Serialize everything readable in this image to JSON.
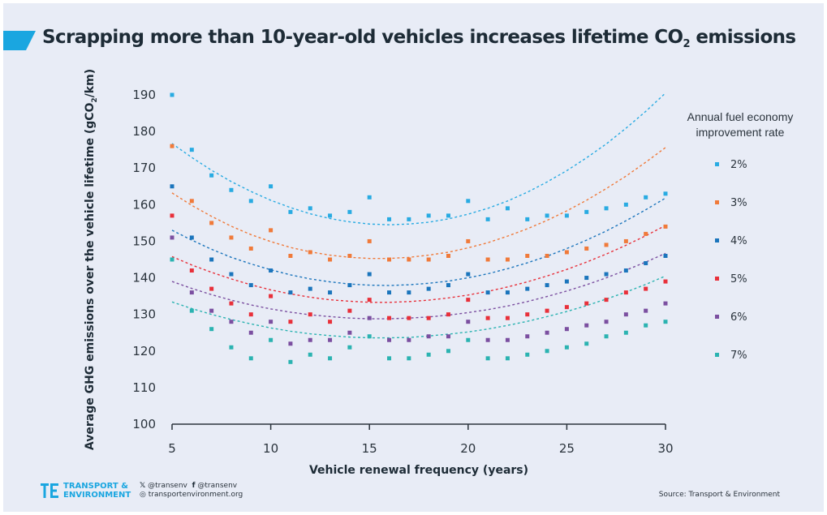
{
  "page": {
    "title_main": "Scrapping more than 10-year-old vehicles increases lifetime CO",
    "title_sub": "2",
    "title_tail": " emissions",
    "footer": {
      "brand_line1": "TRANSPORT &",
      "brand_line2": "ENVIRONMENT",
      "twitter": "@transenv",
      "facebook": "@transenv",
      "website": "transportenvironment.org",
      "twitter_icon": "twitter-icon",
      "facebook_icon": "facebook-icon",
      "web_icon": "globe-icon",
      "source": "Source: Transport & Environment"
    },
    "colors": {
      "accent": "#1aa6e0",
      "background": "#e8ecf6",
      "text": "#1d2b36"
    }
  },
  "chart_data": {
    "type": "scatter",
    "title": "Scrapping more than 10-year-old vehicles increases lifetime CO2 emissions",
    "xlabel": "Vehicle renewal frequency (years)",
    "ylabel_main": "Average GHG emissions over the vehicle lifetime  (gCO",
    "ylabel_sub": "2",
    "ylabel_tail": "/km)",
    "xlim": [
      5,
      30
    ],
    "ylim": [
      100,
      190
    ],
    "xticks": [
      5,
      10,
      15,
      20,
      25,
      30
    ],
    "yticks": [
      100,
      110,
      120,
      130,
      140,
      150,
      160,
      170,
      180,
      190
    ],
    "grid": false,
    "legend_title_line1": "Annual fuel economy",
    "legend_title_line2": "improvement rate",
    "legend_position": "right",
    "trendline": "dashed quadratic fit",
    "x": [
      5,
      6,
      7,
      8,
      9,
      10,
      11,
      12,
      13,
      14,
      15,
      16,
      17,
      18,
      19,
      20,
      21,
      22,
      23,
      24,
      25,
      26,
      27,
      28,
      29,
      30
    ],
    "series": [
      {
        "name": "2%",
        "color": "#29abe2",
        "values": [
          190,
          175,
          168,
          164,
          161,
          165,
          158,
          159,
          157,
          158,
          162,
          156,
          156,
          157,
          157,
          161,
          156,
          159,
          156,
          157,
          157,
          158,
          159,
          160,
          162,
          163
        ],
        "fit": [
          176.7,
          172.9,
          169.4,
          166.3,
          163.6,
          161.2,
          159.2,
          157.5,
          156.2,
          155.3,
          154.7,
          154.5,
          154.7,
          155.2,
          156.1,
          157.4,
          159.0,
          161.0,
          163.4,
          166.2,
          169.3,
          172.8,
          176.6,
          180.9,
          185.5,
          190.5
        ]
      },
      {
        "name": "3%",
        "color": "#f07a3a",
        "values": [
          176,
          161,
          155,
          151,
          148,
          153,
          146,
          147,
          145,
          146,
          150,
          145,
          145,
          145,
          146,
          150,
          145,
          145,
          146,
          146,
          147,
          148,
          149,
          150,
          152,
          154
        ],
        "fit": [
          163.2,
          159.8,
          156.8,
          154.1,
          151.8,
          149.9,
          148.3,
          147.1,
          146.2,
          145.6,
          145.3,
          145.3,
          145.6,
          146.2,
          147.0,
          148.2,
          149.6,
          151.4,
          153.4,
          155.7,
          158.3,
          161.2,
          164.4,
          167.8,
          171.6,
          175.6
        ]
      },
      {
        "name": "4%",
        "color": "#1b75bc",
        "values": [
          165,
          151,
          145,
          141,
          138,
          142,
          136,
          137,
          136,
          138,
          141,
          136,
          136,
          137,
          138,
          141,
          136,
          136,
          137,
          138,
          139,
          140,
          141,
          142,
          144,
          146
        ],
        "fit": [
          153.0,
          150.3,
          147.8,
          145.6,
          143.8,
          142.2,
          140.8,
          139.7,
          138.9,
          138.3,
          138.0,
          137.9,
          138.1,
          138.5,
          139.1,
          140.0,
          141.1,
          142.5,
          144.1,
          145.9,
          148.0,
          150.3,
          152.8,
          155.6,
          158.6,
          161.8
        ]
      },
      {
        "name": "5%",
        "color": "#e8303a",
        "values": [
          157,
          142,
          137,
          133,
          130,
          135,
          128,
          130,
          128,
          131,
          134,
          129,
          129,
          129,
          130,
          134,
          129,
          129,
          130,
          131,
          132,
          133,
          134,
          136,
          137,
          139
        ],
        "fit": [
          145.8,
          143.5,
          141.5,
          139.7,
          138.1,
          136.7,
          135.6,
          134.7,
          134.0,
          133.6,
          133.3,
          133.3,
          133.5,
          133.9,
          134.5,
          135.3,
          136.3,
          137.5,
          138.9,
          140.5,
          142.3,
          144.3,
          146.5,
          148.9,
          151.5,
          154.3
        ]
      },
      {
        "name": "6%",
        "color": "#7b4fa0",
        "values": [
          151,
          136,
          131,
          128,
          125,
          128,
          122,
          123,
          123,
          125,
          129,
          123,
          123,
          124,
          124,
          128,
          123,
          123,
          124,
          125,
          126,
          127,
          128,
          130,
          131,
          133
        ],
        "fit": [
          139.0,
          137.1,
          135.4,
          133.9,
          132.6,
          131.5,
          130.6,
          129.9,
          129.4,
          129.0,
          128.8,
          128.8,
          129.0,
          129.3,
          129.8,
          130.5,
          131.3,
          132.3,
          133.5,
          134.9,
          136.4,
          138.1,
          140.0,
          142.1,
          144.3,
          146.7
        ]
      },
      {
        "name": "7%",
        "color": "#2bb3b1",
        "values": [
          145,
          131,
          126,
          121,
          118,
          123,
          117,
          119,
          118,
          121,
          124,
          118,
          118,
          119,
          120,
          123,
          118,
          118,
          119,
          120,
          121,
          122,
          124,
          125,
          127,
          128
        ],
        "fit": [
          133.4,
          131.6,
          130.0,
          128.6,
          127.4,
          126.3,
          125.4,
          124.7,
          124.2,
          123.8,
          123.6,
          123.6,
          123.7,
          124.1,
          124.6,
          125.2,
          126.0,
          127.0,
          128.1,
          129.4,
          130.8,
          132.4,
          134.2,
          136.1,
          138.2,
          140.5
        ]
      }
    ]
  }
}
